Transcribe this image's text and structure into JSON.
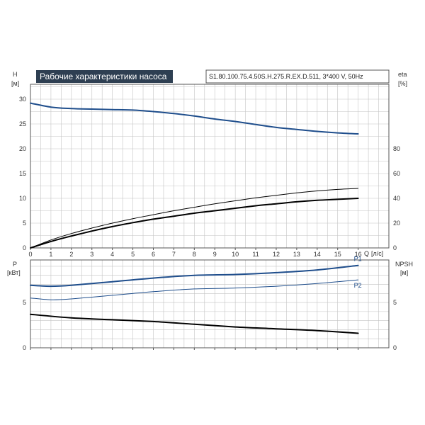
{
  "title": "Рабочие характеристики насоса",
  "model": "S1.80.100.75.4.50S.H.275.R.EX.D.511, 3*400 V, 50Hz",
  "colors": {
    "blue": "#1f4e8c",
    "black": "#000000",
    "grid": "#c4c4c4",
    "title_bg": "#2e3f52"
  },
  "chart_data": [
    {
      "type": "line",
      "panel": "head-efficiency",
      "x_axis": {
        "label": "Q",
        "unit": "[л/с]",
        "ticks": [
          0,
          1,
          2,
          3,
          4,
          5,
          6,
          7,
          8,
          9,
          10,
          11,
          12,
          13,
          14,
          15,
          16
        ],
        "range": [
          0,
          17.5
        ]
      },
      "y_left": {
        "label": "H",
        "unit": "[м]",
        "ticks": [
          0,
          5,
          10,
          15,
          20,
          25,
          30
        ],
        "range": [
          0,
          33
        ]
      },
      "y_right": {
        "label": "eta",
        "unit": "[%]",
        "ticks": [
          0,
          20,
          40,
          60,
          80
        ],
        "range": [
          0,
          132
        ]
      },
      "grid": true,
      "series": [
        {
          "axis": "left",
          "color": "#1f4e8c",
          "width": 2,
          "x": [
            0,
            1,
            2,
            3,
            4,
            5,
            6,
            7,
            8,
            9,
            10,
            11,
            12,
            13,
            14,
            15,
            16
          ],
          "y": [
            29.2,
            28.4,
            28.1,
            28.0,
            27.9,
            27.8,
            27.5,
            27.1,
            26.6,
            26.0,
            25.5,
            24.9,
            24.3,
            23.9,
            23.5,
            23.2,
            23.0
          ]
        },
        {
          "axis": "left",
          "color": "#000000",
          "width": 1,
          "x": [
            0,
            1,
            2,
            3,
            4,
            5,
            6,
            7,
            8,
            9,
            10,
            11,
            12,
            13,
            14,
            15,
            16
          ],
          "y": [
            0,
            1.6,
            2.9,
            4.0,
            5.0,
            5.9,
            6.7,
            7.5,
            8.2,
            8.9,
            9.5,
            10.1,
            10.6,
            11.1,
            11.5,
            11.8,
            12.0
          ]
        },
        {
          "axis": "left",
          "color": "#000000",
          "width": 2,
          "x": [
            0,
            1,
            2,
            3,
            4,
            5,
            6,
            7,
            8,
            9,
            10,
            11,
            12,
            13,
            14,
            15,
            16
          ],
          "y": [
            0,
            1.3,
            2.4,
            3.4,
            4.3,
            5.1,
            5.8,
            6.4,
            7.0,
            7.5,
            8.0,
            8.5,
            8.9,
            9.3,
            9.6,
            9.8,
            10.0
          ]
        }
      ]
    },
    {
      "type": "line",
      "panel": "power-npsh",
      "x_axis": {
        "ticks": [
          0,
          1,
          2,
          3,
          4,
          5,
          6,
          7,
          8,
          9,
          10,
          11,
          12,
          13,
          14,
          15,
          16
        ],
        "range": [
          0,
          17.5
        ]
      },
      "y_left": {
        "label": "P",
        "unit": "[кВт]",
        "ticks": [
          0,
          5
        ],
        "range": [
          0,
          9.7
        ]
      },
      "y_right": {
        "label": "NPSH",
        "unit": "[м]",
        "ticks": [
          0,
          5
        ],
        "range": [
          0,
          9.7
        ]
      },
      "grid": true,
      "series": [
        {
          "name": "P1",
          "axis": "left",
          "color": "#1f4e8c",
          "width": 2,
          "x": [
            0,
            1,
            2,
            4,
            6,
            8,
            10,
            12,
            14,
            16
          ],
          "y": [
            6.9,
            6.8,
            6.9,
            7.3,
            7.7,
            8.0,
            8.1,
            8.3,
            8.6,
            9.1
          ]
        },
        {
          "name": "P2",
          "axis": "left",
          "color": "#1f4e8c",
          "width": 1,
          "x": [
            0,
            1,
            2,
            4,
            6,
            8,
            10,
            12,
            14,
            16
          ],
          "y": [
            5.5,
            5.3,
            5.4,
            5.8,
            6.2,
            6.5,
            6.6,
            6.8,
            7.1,
            7.5
          ]
        },
        {
          "axis": "right",
          "color": "#000000",
          "width": 2,
          "x": [
            0,
            2,
            4,
            6,
            8,
            10,
            12,
            14,
            16
          ],
          "y": [
            3.7,
            3.3,
            3.1,
            2.9,
            2.6,
            2.3,
            2.1,
            1.9,
            1.6
          ]
        }
      ]
    }
  ]
}
